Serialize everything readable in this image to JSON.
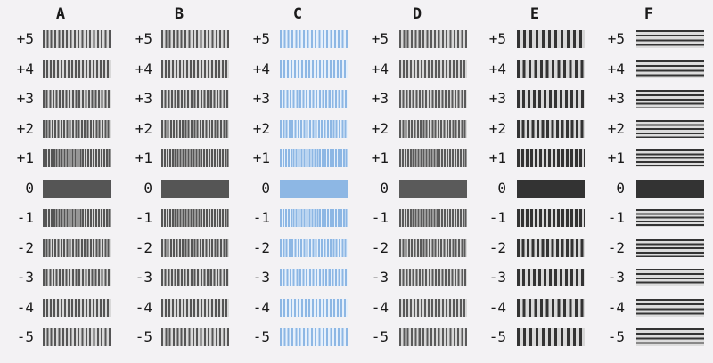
{
  "columns": [
    {
      "letter": "A",
      "patch_color": "#555555",
      "stripe": "vertical-fine"
    },
    {
      "letter": "B",
      "patch_color": "#555555",
      "stripe": "vertical-fine"
    },
    {
      "letter": "C",
      "patch_color": "#8db7e4",
      "stripe": "vertical-fine"
    },
    {
      "letter": "D",
      "patch_color": "#5a5a5a",
      "stripe": "vertical-fine"
    },
    {
      "letter": "E",
      "patch_color": "#333333",
      "stripe": "vertical-coarse"
    },
    {
      "letter": "F",
      "patch_color": "#333333",
      "stripe": "horizontal"
    }
  ],
  "rows": [
    "+5",
    "+4",
    "+3",
    "+2",
    "+1",
    "0",
    "-1",
    "-2",
    "-3",
    "-4",
    "-5"
  ]
}
